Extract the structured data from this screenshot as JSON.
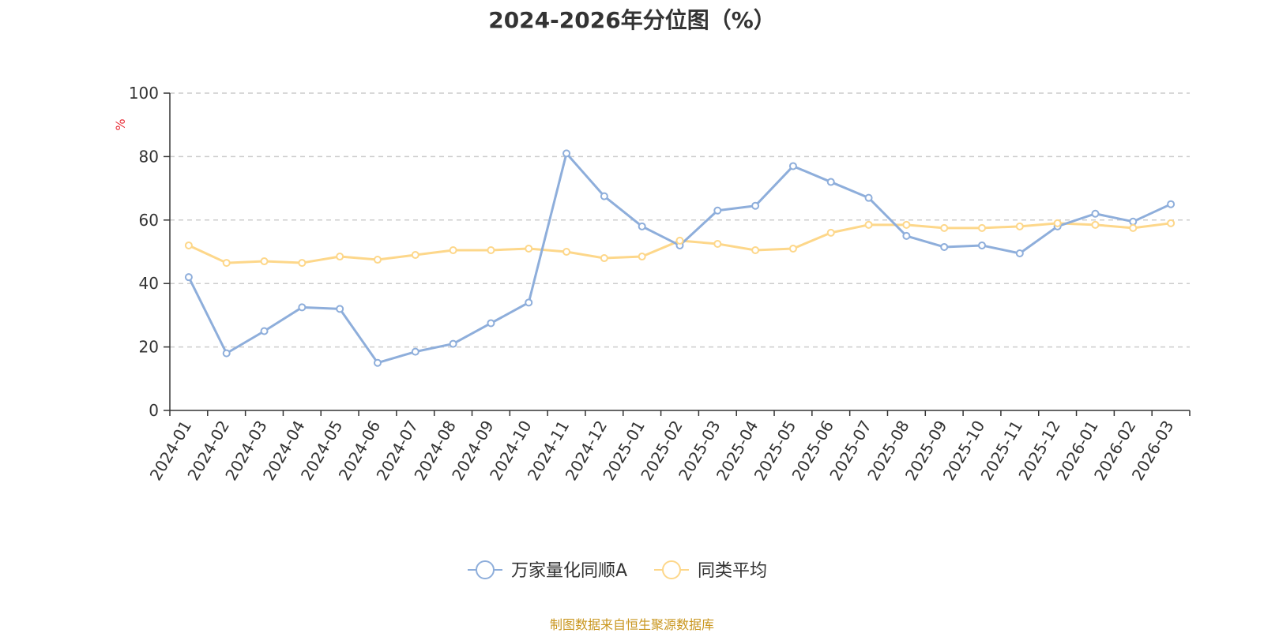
{
  "chart_data": {
    "type": "line",
    "title": "2024-2026年分位图（%）",
    "ylabel": "%",
    "xlabel": "",
    "ylim": [
      0,
      100
    ],
    "yticks": [
      0,
      20,
      40,
      60,
      80,
      100
    ],
    "grid": true,
    "legend_position": "bottom",
    "categories": [
      "2024-01",
      "2024-02",
      "2024-03",
      "2024-04",
      "2024-05",
      "2024-06",
      "2024-07",
      "2024-08",
      "2024-09",
      "2024-10",
      "2024-11",
      "2024-12",
      "2025-01",
      "2025-02",
      "2025-03",
      "2025-04",
      "2025-05",
      "2025-06",
      "2025-07",
      "2025-08",
      "2025-09",
      "2025-10",
      "2025-11",
      "2025-12",
      "2026-01",
      "2026-02",
      "2026-03"
    ],
    "series": [
      {
        "name": "万家量化同顺A",
        "color": "#8eaedb",
        "values": [
          42,
          18,
          25,
          32.5,
          32,
          15,
          18.5,
          21,
          27.5,
          34,
          81,
          67.5,
          58,
          52,
          63,
          64.5,
          77,
          72,
          67,
          55,
          51.5,
          52,
          49.5,
          58,
          62,
          59.5,
          65
        ]
      },
      {
        "name": "同类平均",
        "color": "#fdd78a",
        "values": [
          52,
          46.5,
          47,
          46.5,
          48.5,
          47.5,
          49,
          50.5,
          50.5,
          51,
          50,
          48,
          48.5,
          53.5,
          52.5,
          50.5,
          51,
          56,
          58.5,
          58.5,
          57.5,
          57.5,
          58,
          59,
          58.5,
          57.5,
          59
        ]
      }
    ]
  },
  "source_text": "制图数据来自恒生聚源数据库"
}
